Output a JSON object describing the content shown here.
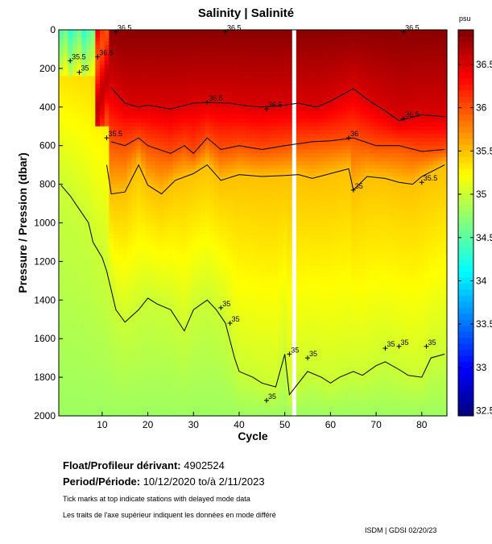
{
  "chart_data": {
    "type": "heatmap",
    "title": "Salinity | Salinité",
    "xlabel": "Cycle",
    "ylabel": "Pressure / Pression (dbar)",
    "xlim": [
      0.5,
      85.5
    ],
    "ylim": [
      2000,
      0
    ],
    "xticks": [
      10,
      20,
      30,
      40,
      50,
      60,
      70,
      80
    ],
    "yticks": [
      0,
      200,
      400,
      600,
      800,
      1000,
      1200,
      1400,
      1600,
      1800,
      2000
    ],
    "missing_cycles": [
      52
    ],
    "colorbar": {
      "unit": "psu",
      "range": [
        32.44,
        36.9
      ],
      "ticks": [
        "32.5",
        "33",
        "33.5",
        "34",
        "34.5",
        "35",
        "35.5",
        "36",
        "36.5"
      ],
      "colormap": "jet"
    },
    "contours": [
      {
        "level": 36.5,
        "points": [
          [
            12,
            300
          ],
          [
            15,
            380
          ],
          [
            18,
            400
          ],
          [
            20,
            390
          ],
          [
            25,
            410
          ],
          [
            30,
            380
          ],
          [
            33,
            376
          ],
          [
            38,
            380
          ],
          [
            42,
            395
          ],
          [
            45,
            400
          ],
          [
            50,
            390
          ],
          [
            53,
            380
          ],
          [
            57,
            400
          ],
          [
            60,
            370
          ],
          [
            65,
            305
          ],
          [
            68,
            360
          ],
          [
            72,
            420
          ],
          [
            75,
            470
          ],
          [
            80,
            440
          ],
          [
            85,
            450
          ]
        ]
      },
      {
        "level": 36,
        "points": [
          [
            12,
            580
          ],
          [
            15,
            600
          ],
          [
            18,
            560
          ],
          [
            20,
            600
          ],
          [
            25,
            640
          ],
          [
            28,
            600
          ],
          [
            30,
            640
          ],
          [
            33,
            560
          ],
          [
            36,
            620
          ],
          [
            40,
            600
          ],
          [
            45,
            620
          ],
          [
            50,
            600
          ],
          [
            53,
            590
          ],
          [
            56,
            580
          ],
          [
            60,
            575
          ],
          [
            65,
            560
          ],
          [
            70,
            600
          ],
          [
            75,
            600
          ],
          [
            80,
            630
          ],
          [
            85,
            620
          ]
        ]
      },
      {
        "level": 35.5,
        "points": [
          [
            11,
            700
          ],
          [
            12,
            850
          ],
          [
            15,
            840
          ],
          [
            18,
            700
          ],
          [
            20,
            805
          ],
          [
            23,
            850
          ],
          [
            26,
            780
          ],
          [
            30,
            745
          ],
          [
            33,
            700
          ],
          [
            36,
            780
          ],
          [
            40,
            750
          ],
          [
            45,
            760
          ],
          [
            50,
            755
          ],
          [
            53,
            750
          ],
          [
            56,
            770
          ],
          [
            60,
            745
          ],
          [
            64,
            720
          ],
          [
            65,
            830
          ],
          [
            68,
            760
          ],
          [
            72,
            770
          ],
          [
            75,
            790
          ],
          [
            78,
            800
          ],
          [
            80,
            760
          ],
          [
            85,
            700
          ]
        ]
      },
      {
        "level": 35,
        "points": [
          [
            1,
            805
          ],
          [
            3,
            860
          ],
          [
            5,
            930
          ],
          [
            7,
            1000
          ],
          [
            8,
            1100
          ],
          [
            10,
            1180
          ],
          [
            11,
            1250
          ],
          [
            12,
            1350
          ],
          [
            13,
            1450
          ],
          [
            15,
            1515
          ],
          [
            18,
            1450
          ],
          [
            20,
            1390
          ],
          [
            22,
            1420
          ],
          [
            25,
            1450
          ],
          [
            28,
            1560
          ],
          [
            30,
            1450
          ],
          [
            33,
            1400
          ],
          [
            35,
            1450
          ],
          [
            37,
            1520
          ],
          [
            39,
            1700
          ],
          [
            40,
            1770
          ],
          [
            43,
            1800
          ],
          [
            45,
            1830
          ],
          [
            48,
            1850
          ],
          [
            50,
            1680
          ],
          [
            51,
            1890
          ],
          [
            55,
            1770
          ],
          [
            58,
            1800
          ],
          [
            60,
            1830
          ],
          [
            62,
            1800
          ],
          [
            65,
            1770
          ],
          [
            67,
            1790
          ],
          [
            70,
            1740
          ],
          [
            72,
            1720
          ],
          [
            75,
            1760
          ],
          [
            77,
            1790
          ],
          [
            80,
            1800
          ],
          [
            82,
            1700
          ],
          [
            85,
            1680
          ]
        ]
      }
    ],
    "contour_labels": [
      {
        "text": "36.5",
        "cycle": 33,
        "p": 376
      },
      {
        "text": "36.5",
        "cycle": 46,
        "p": 410
      },
      {
        "text": "36.5",
        "cycle": 76,
        "p": 460
      },
      {
        "text": "36",
        "cycle": 64,
        "p": 560
      },
      {
        "text": "35.5",
        "cycle": 11,
        "p": 560
      },
      {
        "text": "35.5",
        "cycle": 80,
        "p": 790
      },
      {
        "text": "35",
        "cycle": 65,
        "p": 830
      },
      {
        "text": "35",
        "cycle": 36,
        "p": 1440
      },
      {
        "text": "35",
        "cycle": 38,
        "p": 1520
      },
      {
        "text": "35",
        "cycle": 51,
        "p": 1680
      },
      {
        "text": "35",
        "cycle": 55,
        "p": 1700
      },
      {
        "text": "35",
        "cycle": 72,
        "p": 1650
      },
      {
        "text": "35",
        "cycle": 75,
        "p": 1640
      },
      {
        "text": "35",
        "cycle": 81,
        "p": 1640
      },
      {
        "text": "35",
        "cycle": 46,
        "p": 1920
      },
      {
        "text": "36.5",
        "cycle": 9,
        "p": 140
      },
      {
        "text": "35.5",
        "cycle": 3,
        "p": 160
      },
      {
        "text": "35",
        "cycle": 5,
        "p": 220
      },
      {
        "text": "36.5",
        "cycle": 13,
        "p": 10
      },
      {
        "text": "36.5",
        "cycle": 37,
        "p": 10
      },
      {
        "text": "36.5",
        "cycle": 76,
        "p": 10
      }
    ]
  },
  "info": {
    "float_label": "Float/Profileur dérivant:",
    "float_id": "4902524",
    "period_label": "Period/Période:",
    "period_value": "10/12/2020  to/à  2/11/2023",
    "note_en": "Tick marks at top indicate stations with delayed mode data",
    "note_fr": "Les traits de l'axe supérieur indiquent les données en mode différé",
    "credit": "ISDM | GDSI  02/20/23"
  }
}
